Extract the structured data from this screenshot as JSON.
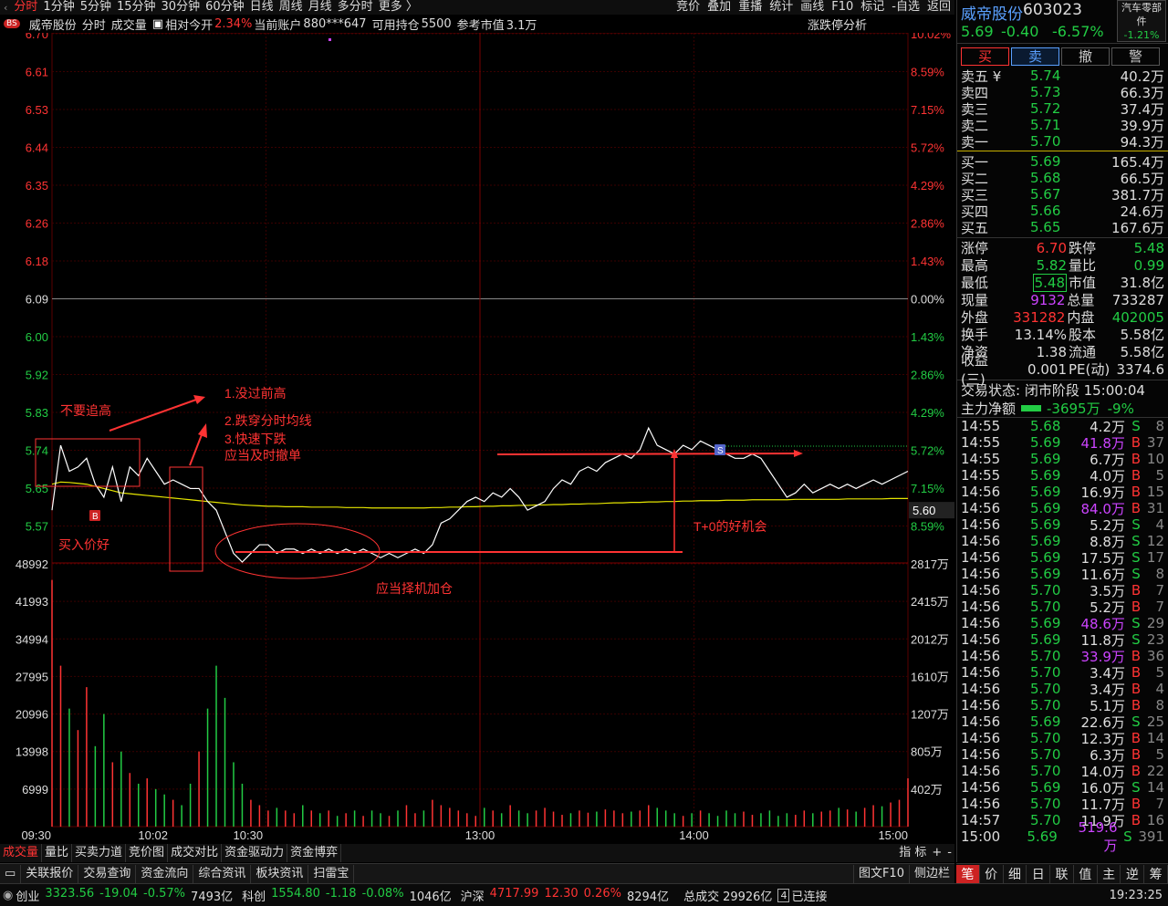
{
  "topbar": {
    "left_arrow": "‹",
    "tabs": [
      "分时",
      "1分钟",
      "5分钟",
      "15分钟",
      "30分钟",
      "60分钟",
      "日线",
      "周线",
      "月线",
      "多分时",
      "更多 〉"
    ],
    "active_tab": 0,
    "right_tabs": [
      "竞价",
      "叠加",
      "重播",
      "统计",
      "画线",
      "F10",
      "标记",
      "-自选",
      "返回"
    ]
  },
  "chart_header": {
    "badge": "BS",
    "name": "威帝股份",
    "mode": "分时",
    "vol_label": "成交量",
    "rel_label": "相对今开",
    "rel_value": "2.34%",
    "account_label": "当前账户",
    "account": "880***647",
    "hold_label": "可用持仓",
    "hold": "5500",
    "ref_label": "参考市值",
    "ref": "3.1万",
    "analysis": "涨跌停分析"
  },
  "chart_data": {
    "type": "line",
    "prev_close": 6.09,
    "price_range": [
      5.48,
      6.7
    ],
    "price_ticks": [
      "6.70",
      "6.61",
      "6.53",
      "6.44",
      "6.35",
      "6.26",
      "6.18",
      "6.09",
      "6.00",
      "5.92",
      "5.83",
      "5.74",
      "5.65",
      "5.57"
    ],
    "pct_ticks": [
      "10.02%",
      "8.59%",
      "7.15%",
      "5.72%",
      "4.29%",
      "2.86%",
      "1.43%",
      "0.00%",
      "1.43%",
      "2.86%",
      "4.29%",
      "5.72%",
      "7.15%",
      "8.59%"
    ],
    "current_price_label": "5.60",
    "vol_ticks_left": [
      "48992",
      "41993",
      "34994",
      "27995",
      "20996",
      "13998",
      "6999"
    ],
    "vol_ticks_right": [
      "2817万",
      "2415万",
      "2012万",
      "1610万",
      "1207万",
      "805万",
      "402万"
    ],
    "vol_max": 48992,
    "time_labels": [
      "09:30",
      "10:02",
      "10:30",
      "13:00",
      "14:00",
      "15:00"
    ],
    "price_series": [
      5.6,
      5.75,
      5.69,
      5.7,
      5.72,
      5.66,
      5.63,
      5.7,
      5.62,
      5.7,
      5.68,
      5.72,
      5.69,
      5.66,
      5.67,
      5.66,
      5.65,
      5.65,
      5.62,
      5.6,
      5.55,
      5.5,
      5.48,
      5.5,
      5.52,
      5.52,
      5.5,
      5.51,
      5.51,
      5.5,
      5.51,
      5.5,
      5.51,
      5.5,
      5.51,
      5.5,
      5.51,
      5.5,
      5.49,
      5.5,
      5.49,
      5.5,
      5.51,
      5.5,
      5.52,
      5.57,
      5.58,
      5.6,
      5.62,
      5.63,
      5.62,
      5.64,
      5.63,
      5.65,
      5.63,
      5.6,
      5.61,
      5.62,
      5.65,
      5.67,
      5.66,
      5.69,
      5.7,
      5.69,
      5.71,
      5.72,
      5.73,
      5.72,
      5.74,
      5.79,
      5.75,
      5.74,
      5.73,
      5.75,
      5.74,
      5.76,
      5.75,
      5.74,
      5.73,
      5.72,
      5.72,
      5.73,
      5.72,
      5.69,
      5.66,
      5.63,
      5.64,
      5.66,
      5.64,
      5.65,
      5.66,
      5.65,
      5.66,
      5.65,
      5.66,
      5.67,
      5.66,
      5.67,
      5.68,
      5.69
    ],
    "avg_series": [
      5.66,
      5.665,
      5.664,
      5.662,
      5.66,
      5.655,
      5.65,
      5.645,
      5.64,
      5.638,
      5.636,
      5.634,
      5.632,
      5.63,
      5.628,
      5.626,
      5.624,
      5.622,
      5.62,
      5.618,
      5.616,
      5.614,
      5.612,
      5.611,
      5.61,
      5.609,
      5.609,
      5.608,
      5.608,
      5.608,
      5.607,
      5.607,
      5.607,
      5.607,
      5.606,
      5.606,
      5.606,
      5.605,
      5.605,
      5.605,
      5.605,
      5.605,
      5.605,
      5.605,
      5.606,
      5.606,
      5.607,
      5.607,
      5.608,
      5.608,
      5.609,
      5.609,
      5.61,
      5.61,
      5.611,
      5.611,
      5.612,
      5.612,
      5.613,
      5.613,
      5.614,
      5.614,
      5.615,
      5.615,
      5.616,
      5.617,
      5.617,
      5.618,
      5.618,
      5.619,
      5.619,
      5.62,
      5.62,
      5.621,
      5.621,
      5.622,
      5.622,
      5.622,
      5.623,
      5.623,
      5.623,
      5.624,
      5.624,
      5.624,
      5.624,
      5.624,
      5.625,
      5.625,
      5.625,
      5.625,
      5.625,
      5.625,
      5.626,
      5.626,
      5.626,
      5.626,
      5.626,
      5.627,
      5.627,
      5.627
    ],
    "volume_series": [
      46000,
      30000,
      22000,
      18000,
      26000,
      15000,
      21000,
      12000,
      14000,
      10000,
      8000,
      9000,
      7000,
      6000,
      5000,
      4000,
      8000,
      14000,
      22000,
      30000,
      24000,
      12000,
      8000,
      5000,
      4000,
      3000,
      3500,
      3000,
      2500,
      4000,
      3000,
      2500,
      3000,
      2000,
      2500,
      3000,
      2000,
      3000,
      2500,
      2000,
      3000,
      4000,
      2500,
      3000,
      5000,
      4000,
      3500,
      3000,
      2500,
      2000,
      3500,
      3000,
      2500,
      4000,
      3000,
      2500,
      3000,
      3500,
      2800,
      2200,
      2500,
      3000,
      2600,
      2800,
      3200,
      3000,
      2500,
      2800,
      3000,
      4000,
      3500,
      3000,
      2500,
      2000,
      2500,
      3000,
      2500,
      2000,
      3000,
      2500,
      2800,
      2200,
      2500,
      3000,
      2000,
      2500,
      2200,
      3000,
      2500,
      2800,
      3000,
      3500,
      3200,
      2800,
      3500,
      4000,
      3800,
      4500,
      5000,
      9000
    ],
    "annotations": {
      "no_chase": "不要追高",
      "note1": "1.没过前高",
      "note2": "2.跌穿分时均线",
      "note3": "3.快速下跌",
      "note4": "应当及时撤单",
      "buy_good": "买入价好",
      "add_pos": "应当择机加仓",
      "t0": "T+0的好机会"
    },
    "marker_b": "B",
    "marker_s": "S"
  },
  "tabstrip": {
    "tabs": [
      "成交量",
      "量比",
      "买卖力道",
      "竞价图",
      "成交对比",
      "资金驱动力",
      "资金博弈"
    ],
    "active": 0,
    "right": [
      "指 标",
      "+",
      "-"
    ]
  },
  "toolbar2": {
    "icon": "▭",
    "items": [
      "关联报价",
      "交易查询",
      "资金流向",
      "综合资讯",
      "板块资讯",
      "扫雷宝"
    ],
    "right": [
      "图文F10",
      "侧边栏"
    ]
  },
  "statusbar": {
    "icon": "◉",
    "indices": [
      {
        "name": "创业",
        "value": "3323.56",
        "chg": "-19.04",
        "pct": "-0.57%",
        "amount": "7493亿",
        "color": "g"
      },
      {
        "name": "科创",
        "value": "1554.80",
        "chg": "-1.18",
        "pct": "-0.08%",
        "amount": "1046亿",
        "color": "g"
      },
      {
        "name": "沪深",
        "value": "4717.99",
        "chg": "12.30",
        "pct": "0.26%",
        "amount": "8294亿",
        "color": "r"
      }
    ],
    "total_label": "总成交",
    "total": "29926亿",
    "conn_icon": "4",
    "conn": "已连接",
    "time": "19:23:25"
  },
  "rpanel": {
    "name": "威帝股份",
    "code": "603023",
    "price": "5.69",
    "chg": "-0.40",
    "pct": "-6.57%",
    "sector_name": "汽车零部件",
    "sector_pct": "-1.21%",
    "buttons": [
      "买",
      "卖",
      "撤",
      "警"
    ],
    "asks": [
      {
        "l": "卖五 ¥",
        "p": "5.74",
        "v": "40.2万"
      },
      {
        "l": "卖四",
        "p": "5.73",
        "v": "66.3万"
      },
      {
        "l": "卖三",
        "p": "5.72",
        "v": "37.4万"
      },
      {
        "l": "卖二",
        "p": "5.71",
        "v": "39.9万"
      },
      {
        "l": "卖一",
        "p": "5.70",
        "v": "94.3万"
      }
    ],
    "bids": [
      {
        "l": "买一",
        "p": "5.69",
        "v": "165.4万"
      },
      {
        "l": "买二",
        "p": "5.68",
        "v": "66.5万"
      },
      {
        "l": "买三",
        "p": "5.67",
        "v": "381.7万"
      },
      {
        "l": "买四",
        "p": "5.66",
        "v": "24.6万"
      },
      {
        "l": "买五",
        "p": "5.65",
        "v": "167.6万"
      }
    ],
    "stats": [
      {
        "l": "涨停",
        "v": "6.70",
        "vc": "c-r",
        "l2": "跌停",
        "v2": "5.48",
        "v2c": "c-g"
      },
      {
        "l": "最高",
        "v": "5.82",
        "vc": "c-g",
        "l2": "量比",
        "v2": "0.99",
        "v2c": "c-g"
      },
      {
        "l": "最低",
        "v": "5.48",
        "vc": "c-g boxed",
        "l2": "市值",
        "v2": "31.8亿",
        "v2c": "c-w"
      },
      {
        "l": "现量",
        "v": "9132",
        "vc": "c-m",
        "l2": "总量",
        "v2": "733287",
        "v2c": "c-w"
      },
      {
        "l": "外盘",
        "v": "331282",
        "vc": "c-r",
        "l2": "内盘",
        "v2": "402005",
        "v2c": "c-g"
      },
      {
        "l": "换手",
        "v": "13.14%",
        "vc": "c-w",
        "l2": "股本",
        "v2": "5.58亿",
        "v2c": "c-w"
      },
      {
        "l": "净资",
        "v": "1.38",
        "vc": "c-w",
        "l2": "流通",
        "v2": "5.58亿",
        "v2c": "c-w"
      },
      {
        "l": "收益(三)",
        "v": "0.001",
        "vc": "c-w",
        "l2": "PE(动)",
        "v2": "3374.6",
        "v2c": "c-w"
      }
    ],
    "status": "交易状态: 闭市阶段 15:00:04",
    "netflow_label": "主力净额",
    "netflow": "-3695万",
    "netflow_pct": "-9%",
    "ticks": [
      {
        "t": "14:55",
        "p": "5.68",
        "v": "4.2万",
        "s": "S",
        "n": "8",
        "vm": false
      },
      {
        "t": "14:55",
        "p": "5.69",
        "v": "41.8万",
        "s": "B",
        "n": "37",
        "vm": true
      },
      {
        "t": "14:55",
        "p": "5.69",
        "v": "6.7万",
        "s": "B",
        "n": "10",
        "vm": false
      },
      {
        "t": "14:55",
        "p": "5.69",
        "v": "4.0万",
        "s": "B",
        "n": "5",
        "vm": false
      },
      {
        "t": "14:56",
        "p": "5.69",
        "v": "16.9万",
        "s": "B",
        "n": "15",
        "vm": false
      },
      {
        "t": "14:56",
        "p": "5.69",
        "v": "84.0万",
        "s": "B",
        "n": "31",
        "vm": true
      },
      {
        "t": "14:56",
        "p": "5.69",
        "v": "5.2万",
        "s": "S",
        "n": "4",
        "vm": false
      },
      {
        "t": "14:56",
        "p": "5.69",
        "v": "8.8万",
        "s": "S",
        "n": "12",
        "vm": false
      },
      {
        "t": "14:56",
        "p": "5.69",
        "v": "17.5万",
        "s": "S",
        "n": "17",
        "vm": false
      },
      {
        "t": "14:56",
        "p": "5.69",
        "v": "11.6万",
        "s": "S",
        "n": "8",
        "vm": false
      },
      {
        "t": "14:56",
        "p": "5.70",
        "v": "3.5万",
        "s": "B",
        "n": "7",
        "vm": false
      },
      {
        "t": "14:56",
        "p": "5.70",
        "v": "5.2万",
        "s": "B",
        "n": "7",
        "vm": false
      },
      {
        "t": "14:56",
        "p": "5.69",
        "v": "48.6万",
        "s": "S",
        "n": "29",
        "vm": true
      },
      {
        "t": "14:56",
        "p": "5.69",
        "v": "11.8万",
        "s": "S",
        "n": "23",
        "vm": false
      },
      {
        "t": "14:56",
        "p": "5.70",
        "v": "33.9万",
        "s": "B",
        "n": "36",
        "vm": true
      },
      {
        "t": "14:56",
        "p": "5.70",
        "v": "3.4万",
        "s": "B",
        "n": "5",
        "vm": false
      },
      {
        "t": "14:56",
        "p": "5.70",
        "v": "3.4万",
        "s": "B",
        "n": "4",
        "vm": false
      },
      {
        "t": "14:56",
        "p": "5.70",
        "v": "5.1万",
        "s": "B",
        "n": "8",
        "vm": false
      },
      {
        "t": "14:56",
        "p": "5.69",
        "v": "22.6万",
        "s": "S",
        "n": "25",
        "vm": false
      },
      {
        "t": "14:56",
        "p": "5.70",
        "v": "12.3万",
        "s": "B",
        "n": "14",
        "vm": false
      },
      {
        "t": "14:56",
        "p": "5.70",
        "v": "6.3万",
        "s": "B",
        "n": "5",
        "vm": false
      },
      {
        "t": "14:56",
        "p": "5.70",
        "v": "14.0万",
        "s": "B",
        "n": "22",
        "vm": false
      },
      {
        "t": "14:56",
        "p": "5.69",
        "v": "16.0万",
        "s": "S",
        "n": "14",
        "vm": false
      },
      {
        "t": "14:56",
        "p": "5.70",
        "v": "11.7万",
        "s": "B",
        "n": "7",
        "vm": false
      },
      {
        "t": "14:57",
        "p": "5.70",
        "v": "11.9万",
        "s": "B",
        "n": "16",
        "vm": false
      },
      {
        "t": "15:00",
        "p": "5.69",
        "v": "519.6万",
        "s": "S",
        "n": "391",
        "vm": true
      }
    ],
    "bottom_tabs": [
      "笔",
      "价",
      "细",
      "日",
      "联",
      "值",
      "主",
      "逆",
      "筹"
    ],
    "bottom_active": 0
  },
  "colors": {
    "up": "#ff3333",
    "down": "#22cc44",
    "price_line": "#ffffff",
    "avg_line": "#e6e600",
    "annotation": "#ff3333",
    "grid": "#3a0000"
  }
}
